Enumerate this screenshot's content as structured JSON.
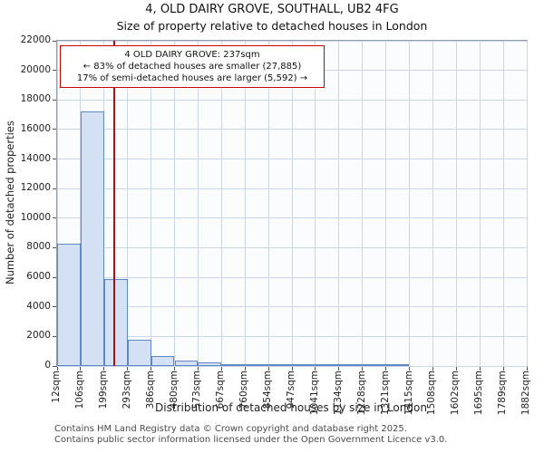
{
  "chart_data": {
    "type": "bar",
    "title": "4, OLD DAIRY GROVE, SOUTHALL, UB2 4FG",
    "subtitle": "Size of property relative to detached houses in London",
    "xlabel": "Distribution of detached houses by size in London",
    "ylabel": "Number of detached properties",
    "ylim": [
      0,
      22000
    ],
    "y_ticks": [
      0,
      2000,
      4000,
      6000,
      8000,
      10000,
      12000,
      14000,
      16000,
      18000,
      20000,
      22000
    ],
    "grid": true,
    "bin_edges_sqm": [
      12,
      106,
      199,
      293,
      386,
      480,
      573,
      667,
      760,
      854,
      947,
      1041,
      1134,
      1228,
      1321,
      1415,
      1508,
      1602,
      1695,
      1789,
      1882
    ],
    "x_tick_labels": [
      "12sqm",
      "106sqm",
      "199sqm",
      "293sqm",
      "386sqm",
      "480sqm",
      "573sqm",
      "667sqm",
      "760sqm",
      "854sqm",
      "947sqm",
      "1041sqm",
      "1134sqm",
      "1228sqm",
      "1321sqm",
      "1415sqm",
      "1508sqm",
      "1602sqm",
      "1695sqm",
      "1789sqm",
      "1882sqm"
    ],
    "values": [
      8300,
      17200,
      5900,
      1800,
      650,
      350,
      220,
      120,
      70,
      40,
      25,
      15,
      10,
      5,
      5,
      0,
      0,
      0,
      0,
      0
    ],
    "marker": {
      "label": "4 OLD DAIRY GROVE",
      "value_sqm": 237,
      "color": "#a31515"
    },
    "annotation": {
      "line1": "4 OLD DAIRY GROVE: 237sqm",
      "line2": "← 83% of detached houses are smaller (27,885)",
      "line3": "17% of semi-detached houses are larger (5,592) →",
      "border_color": "#cc0000"
    },
    "colors": {
      "bar_fill": "#d4e1f5",
      "bar_border": "#5c88c5",
      "grid": "#ccd6e8",
      "plot_bg": "#fbfcfe"
    }
  },
  "footer": {
    "line1": "Contains HM Land Registry data © Crown copyright and database right 2025.",
    "line2": "Contains public sector information licensed under the Open Government Licence v3.0."
  }
}
